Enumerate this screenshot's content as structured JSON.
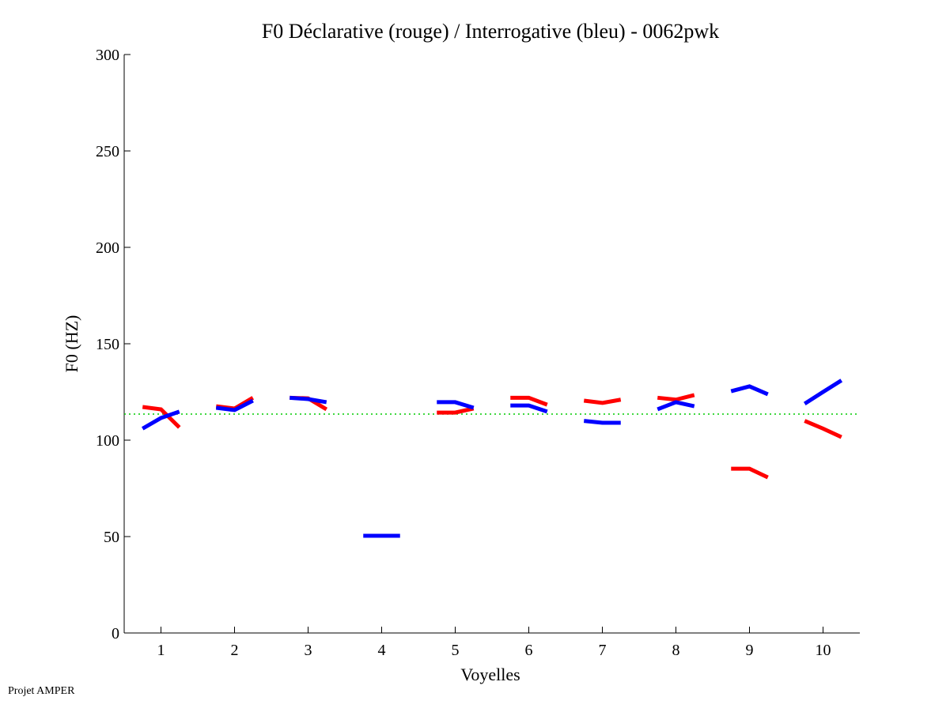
{
  "chart_data": {
    "type": "line",
    "title": "F0 Déclarative (rouge) / Interrogative (bleu) - 0062pwk",
    "xlabel": "Voyelles",
    "ylabel": "F0 (HZ)",
    "ylim": [
      0,
      300
    ],
    "xlim": [
      0.5,
      10.5
    ],
    "yticks": [
      0,
      50,
      100,
      150,
      200,
      250,
      300
    ],
    "xticks": [
      1,
      2,
      3,
      4,
      5,
      6,
      7,
      8,
      9,
      10
    ],
    "reference_line": {
      "value": 113.5,
      "color": "#00cc00",
      "style": "dotted"
    },
    "series": [
      {
        "name": "Déclarative",
        "color": "#ff0000",
        "values": [
          [
            117.2,
            116,
            106.6
          ],
          [
            117.6,
            116.4,
            122
          ],
          [
            122,
            121.7,
            116
          ],
          null,
          [
            114.3,
            114.3,
            116.4
          ],
          [
            122,
            122,
            118.4
          ],
          [
            120.5,
            119.3,
            121
          ],
          [
            122,
            121,
            123.4
          ],
          [
            85.2,
            85.2,
            80.7
          ],
          [
            110,
            106,
            101.6
          ]
        ]
      },
      {
        "name": "Interrogative",
        "color": "#0000ff",
        "values": [
          [
            106,
            111.5,
            114.8
          ],
          [
            116.8,
            115.6,
            120.5
          ],
          [
            122,
            121.3,
            119.7
          ],
          [
            50.4,
            50.4,
            50.4
          ],
          [
            119.7,
            119.7,
            116.8
          ],
          [
            118,
            118,
            114.8
          ],
          [
            110,
            109,
            109
          ],
          [
            116,
            119.7,
            117.6
          ],
          [
            125.4,
            127.9,
            123.8
          ],
          [
            118.9,
            125,
            131
          ]
        ]
      }
    ]
  },
  "footer": "Projet AMPER"
}
